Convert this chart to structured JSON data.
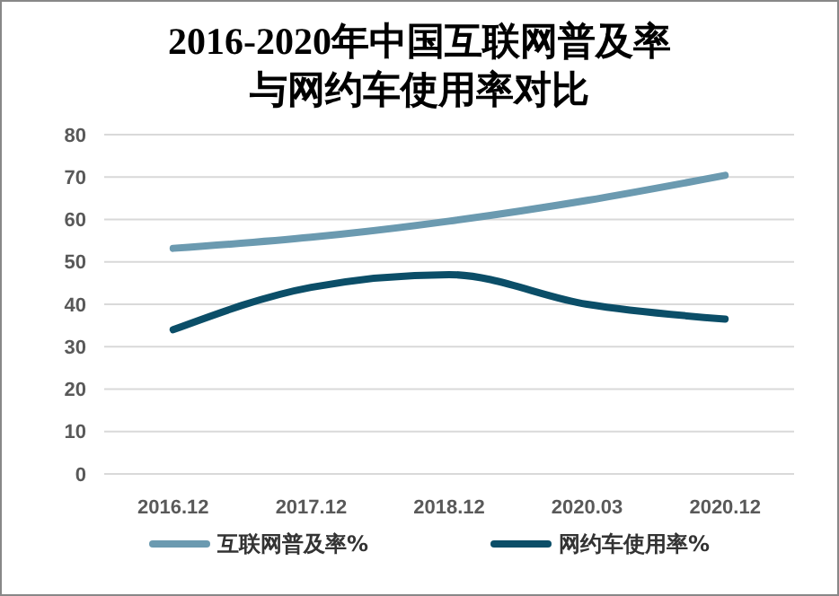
{
  "chart_data": {
    "type": "line",
    "title": "2016-2020年中国互联网普及率与网约车使用率对比",
    "categories": [
      "2016.12",
      "2017.12",
      "2018.12",
      "2020.03",
      "2020.12"
    ],
    "series": [
      {
        "name": "互联网普及率%",
        "color": "#6b9ab0",
        "values": [
          53.2,
          55.8,
          59.6,
          64.5,
          70.4
        ]
      },
      {
        "name": "网约车使用率%",
        "color": "#0b4e68",
        "values": [
          34,
          44,
          47,
          40,
          36.5
        ]
      }
    ],
    "ylim": [
      0,
      80
    ],
    "yticks": [
      0,
      10,
      20,
      30,
      40,
      50,
      60,
      70,
      80
    ],
    "grid": "y",
    "legend": "bottom",
    "marker": "none",
    "line_style": "solid"
  }
}
